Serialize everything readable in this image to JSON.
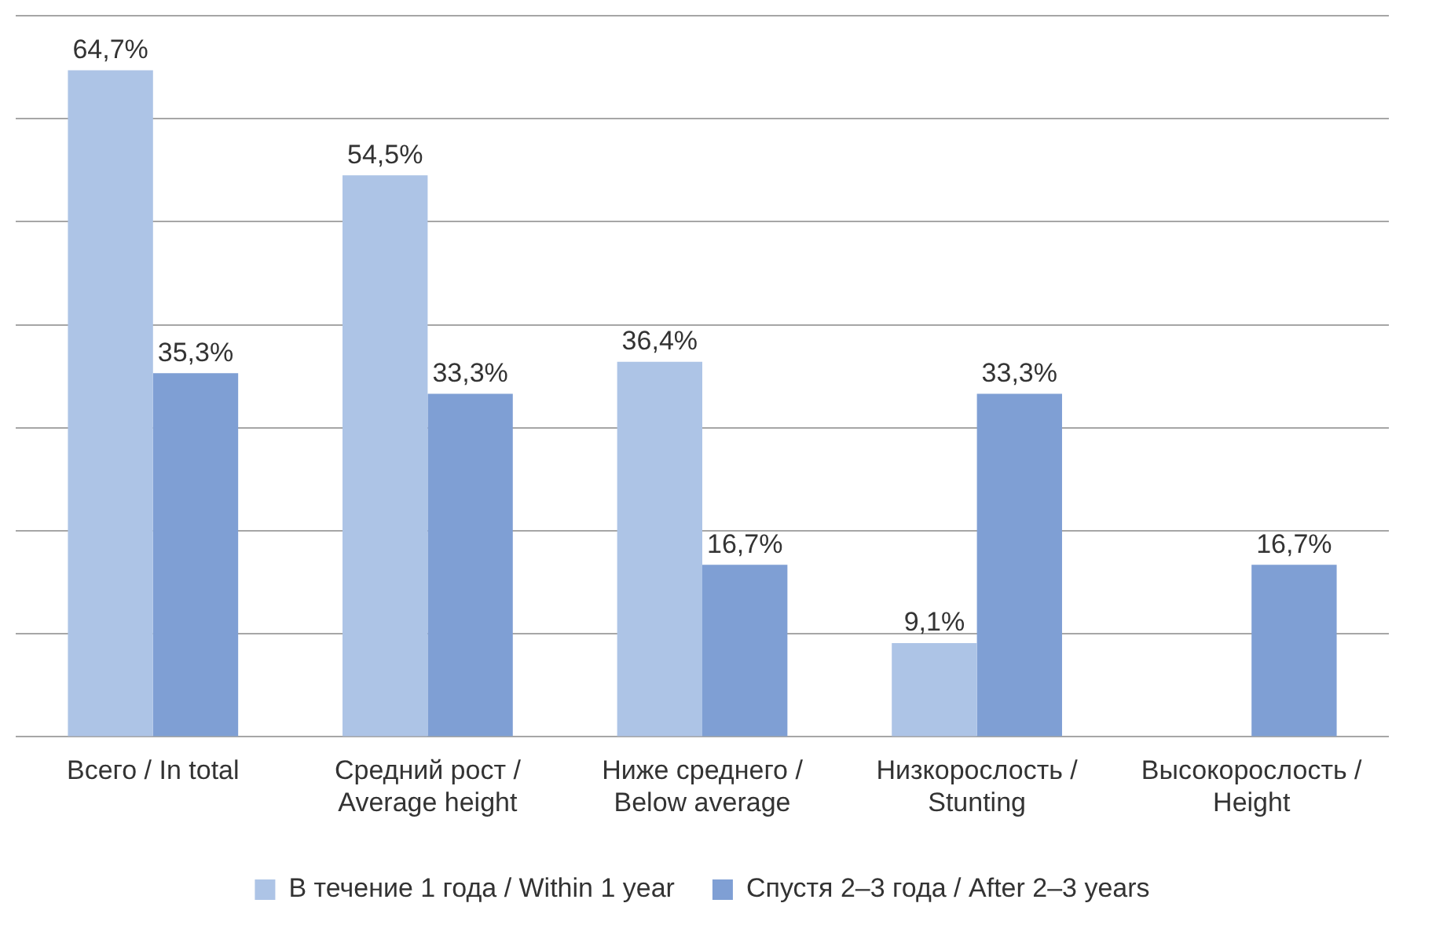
{
  "chart_data": {
    "type": "bar",
    "categories": [
      "Всего / In total",
      "Средний рост /\nAverage height",
      "Ниже среднего /\nBelow average",
      "Низкорослость /\nStunting",
      "Высокорослость /\nHeight"
    ],
    "series": [
      {
        "name": "В течение 1 года / Within 1 year",
        "color": "#adc4e6",
        "values": [
          64.7,
          54.5,
          36.4,
          9.1,
          null
        ],
        "value_labels": [
          "64,7%",
          "54,5%",
          "36,4%",
          "9,1%",
          null
        ]
      },
      {
        "name": "Спустя 2–3 года / After 2–3 years",
        "color": "#7f9fd4",
        "values": [
          35.3,
          33.3,
          16.7,
          33.3,
          16.7
        ],
        "value_labels": [
          "35,3%",
          "33,3%",
          "16,7%",
          "33,3%",
          "16,7%"
        ]
      }
    ],
    "ylim": [
      0,
      70
    ],
    "yticks": [
      {
        "value": 0,
        "label": null
      },
      {
        "value": 10,
        "label": null
      },
      {
        "value": 20,
        "label": null
      },
      {
        "value": 30,
        "label": null
      },
      {
        "value": 40,
        "label": null
      },
      {
        "value": 50,
        "label": null
      },
      {
        "value": 60,
        "label": null
      },
      {
        "value": 70,
        "label": null
      }
    ],
    "grid": "y",
    "legend": "bottom",
    "tick_labels": "x"
  }
}
